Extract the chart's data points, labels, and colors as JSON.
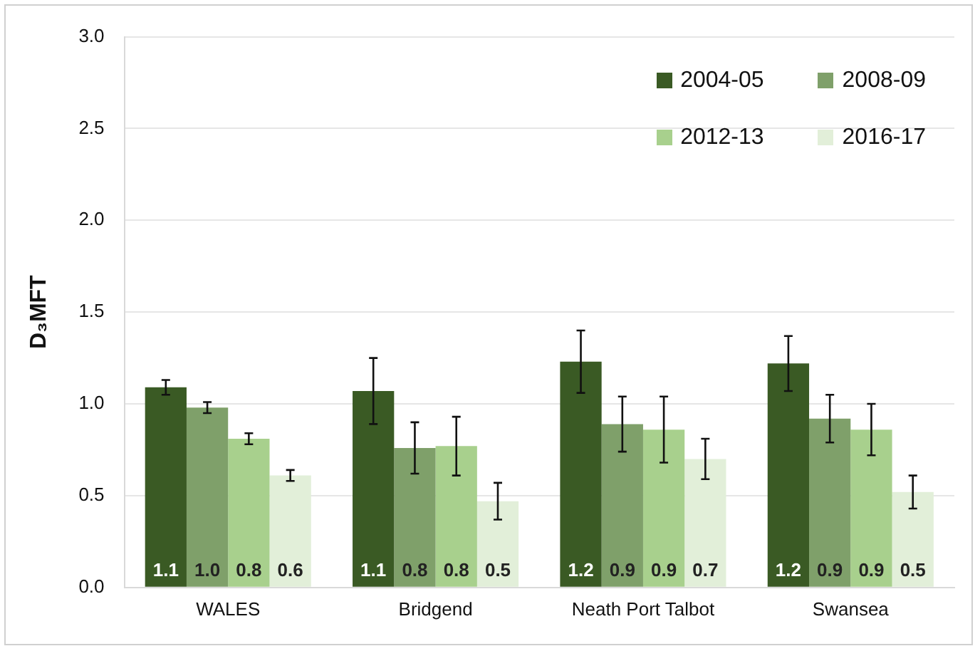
{
  "chart_data": {
    "type": "bar",
    "ylabel": "D₃MFT",
    "categories": [
      "WALES",
      "Bridgend",
      "Neath Port Talbot",
      "Swansea"
    ],
    "series": [
      {
        "name": "2004-05",
        "color": "#3a5a24",
        "values": [
          1.09,
          1.07,
          1.23,
          1.22
        ],
        "errors": [
          0.04,
          0.18,
          0.17,
          0.15
        ],
        "value_labels": [
          "1.1",
          "1.1",
          "1.2",
          "1.2"
        ]
      },
      {
        "name": "2008-09",
        "color": "#7fa06a",
        "values": [
          0.98,
          0.76,
          0.89,
          0.92
        ],
        "errors": [
          0.03,
          0.14,
          0.15,
          0.13
        ],
        "value_labels": [
          "1.0",
          "0.8",
          "0.9",
          "0.9"
        ]
      },
      {
        "name": "2012-13",
        "color": "#a8d08d",
        "values": [
          0.81,
          0.77,
          0.86,
          0.86
        ],
        "errors": [
          0.03,
          0.16,
          0.18,
          0.14
        ],
        "value_labels": [
          "0.8",
          "0.8",
          "0.9",
          "0.9"
        ]
      },
      {
        "name": "2016-17",
        "color": "#e2efd9",
        "values": [
          0.61,
          0.47,
          0.7,
          0.52
        ],
        "errors": [
          0.03,
          0.1,
          0.11,
          0.09
        ],
        "value_labels": [
          "0.6",
          "0.5",
          "0.7",
          "0.5"
        ]
      }
    ],
    "ylim": [
      0,
      3
    ],
    "yticks": [
      {
        "value": 0,
        "label": "0.0"
      },
      {
        "value": 0.5,
        "label": "0.5"
      },
      {
        "value": 1,
        "label": "1.0"
      },
      {
        "value": 1.5,
        "label": "1.5"
      },
      {
        "value": 2,
        "label": "2.0"
      },
      {
        "value": 2.5,
        "label": "2.5"
      },
      {
        "value": 3,
        "label": "3.0"
      }
    ],
    "grid": "y",
    "legend": "top right"
  }
}
